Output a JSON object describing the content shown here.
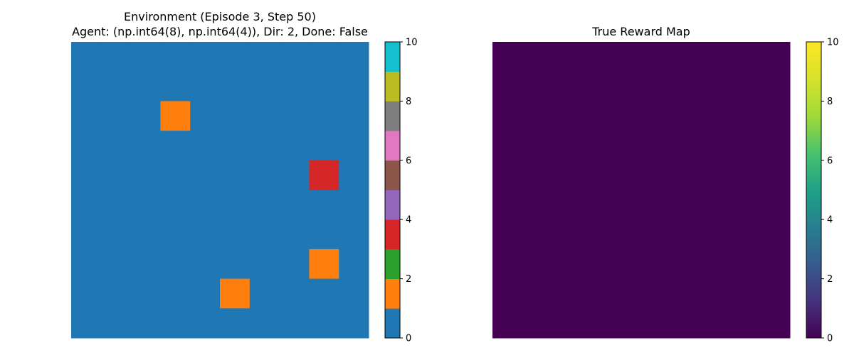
{
  "chart_data": [
    {
      "type": "heatmap",
      "title": "Environment (Episode 3, Step 50)",
      "subtitle": "Agent: (np.int64(8), np.int64(4)), Dir: 2, Done: False",
      "grid_size": [
        10,
        10
      ],
      "grid": [
        [
          0,
          0,
          0,
          0,
          0,
          0,
          0,
          0,
          0,
          0
        ],
        [
          0,
          0,
          0,
          0,
          0,
          0,
          0,
          0,
          0,
          0
        ],
        [
          0,
          0,
          0,
          1,
          0,
          0,
          0,
          0,
          0,
          0
        ],
        [
          0,
          0,
          0,
          0,
          0,
          0,
          0,
          0,
          0,
          0
        ],
        [
          0,
          0,
          0,
          0,
          0,
          0,
          0,
          0,
          3,
          0
        ],
        [
          0,
          0,
          0,
          0,
          0,
          0,
          0,
          0,
          0,
          0
        ],
        [
          0,
          0,
          0,
          0,
          0,
          0,
          0,
          0,
          0,
          0
        ],
        [
          0,
          0,
          0,
          0,
          0,
          0,
          0,
          0,
          1,
          0
        ],
        [
          0,
          0,
          0,
          0,
          0,
          1,
          0,
          0,
          0,
          0
        ],
        [
          0,
          0,
          0,
          0,
          0,
          0,
          0,
          0,
          0,
          0
        ]
      ],
      "colormap": "tab10",
      "palette": [
        "#1f77b4",
        "#ff7f0e",
        "#2ca02c",
        "#d62728",
        "#9467bd",
        "#8c564b",
        "#e377c2",
        "#7f7f7f",
        "#bcbd22",
        "#17becf"
      ],
      "colorbar": {
        "vmin": 0,
        "vmax": 10,
        "ticks": [
          "0",
          "2",
          "4",
          "6",
          "8",
          "10"
        ]
      },
      "axes": "off"
    },
    {
      "type": "heatmap",
      "title": "True Reward Map",
      "grid_size": [
        10,
        10
      ],
      "fill_value": 0,
      "colormap": "viridis",
      "colorbar": {
        "vmin": 0,
        "vmax": 10,
        "ticks": [
          "0",
          "2",
          "4",
          "6",
          "8",
          "10"
        ]
      },
      "axes": "off"
    }
  ]
}
